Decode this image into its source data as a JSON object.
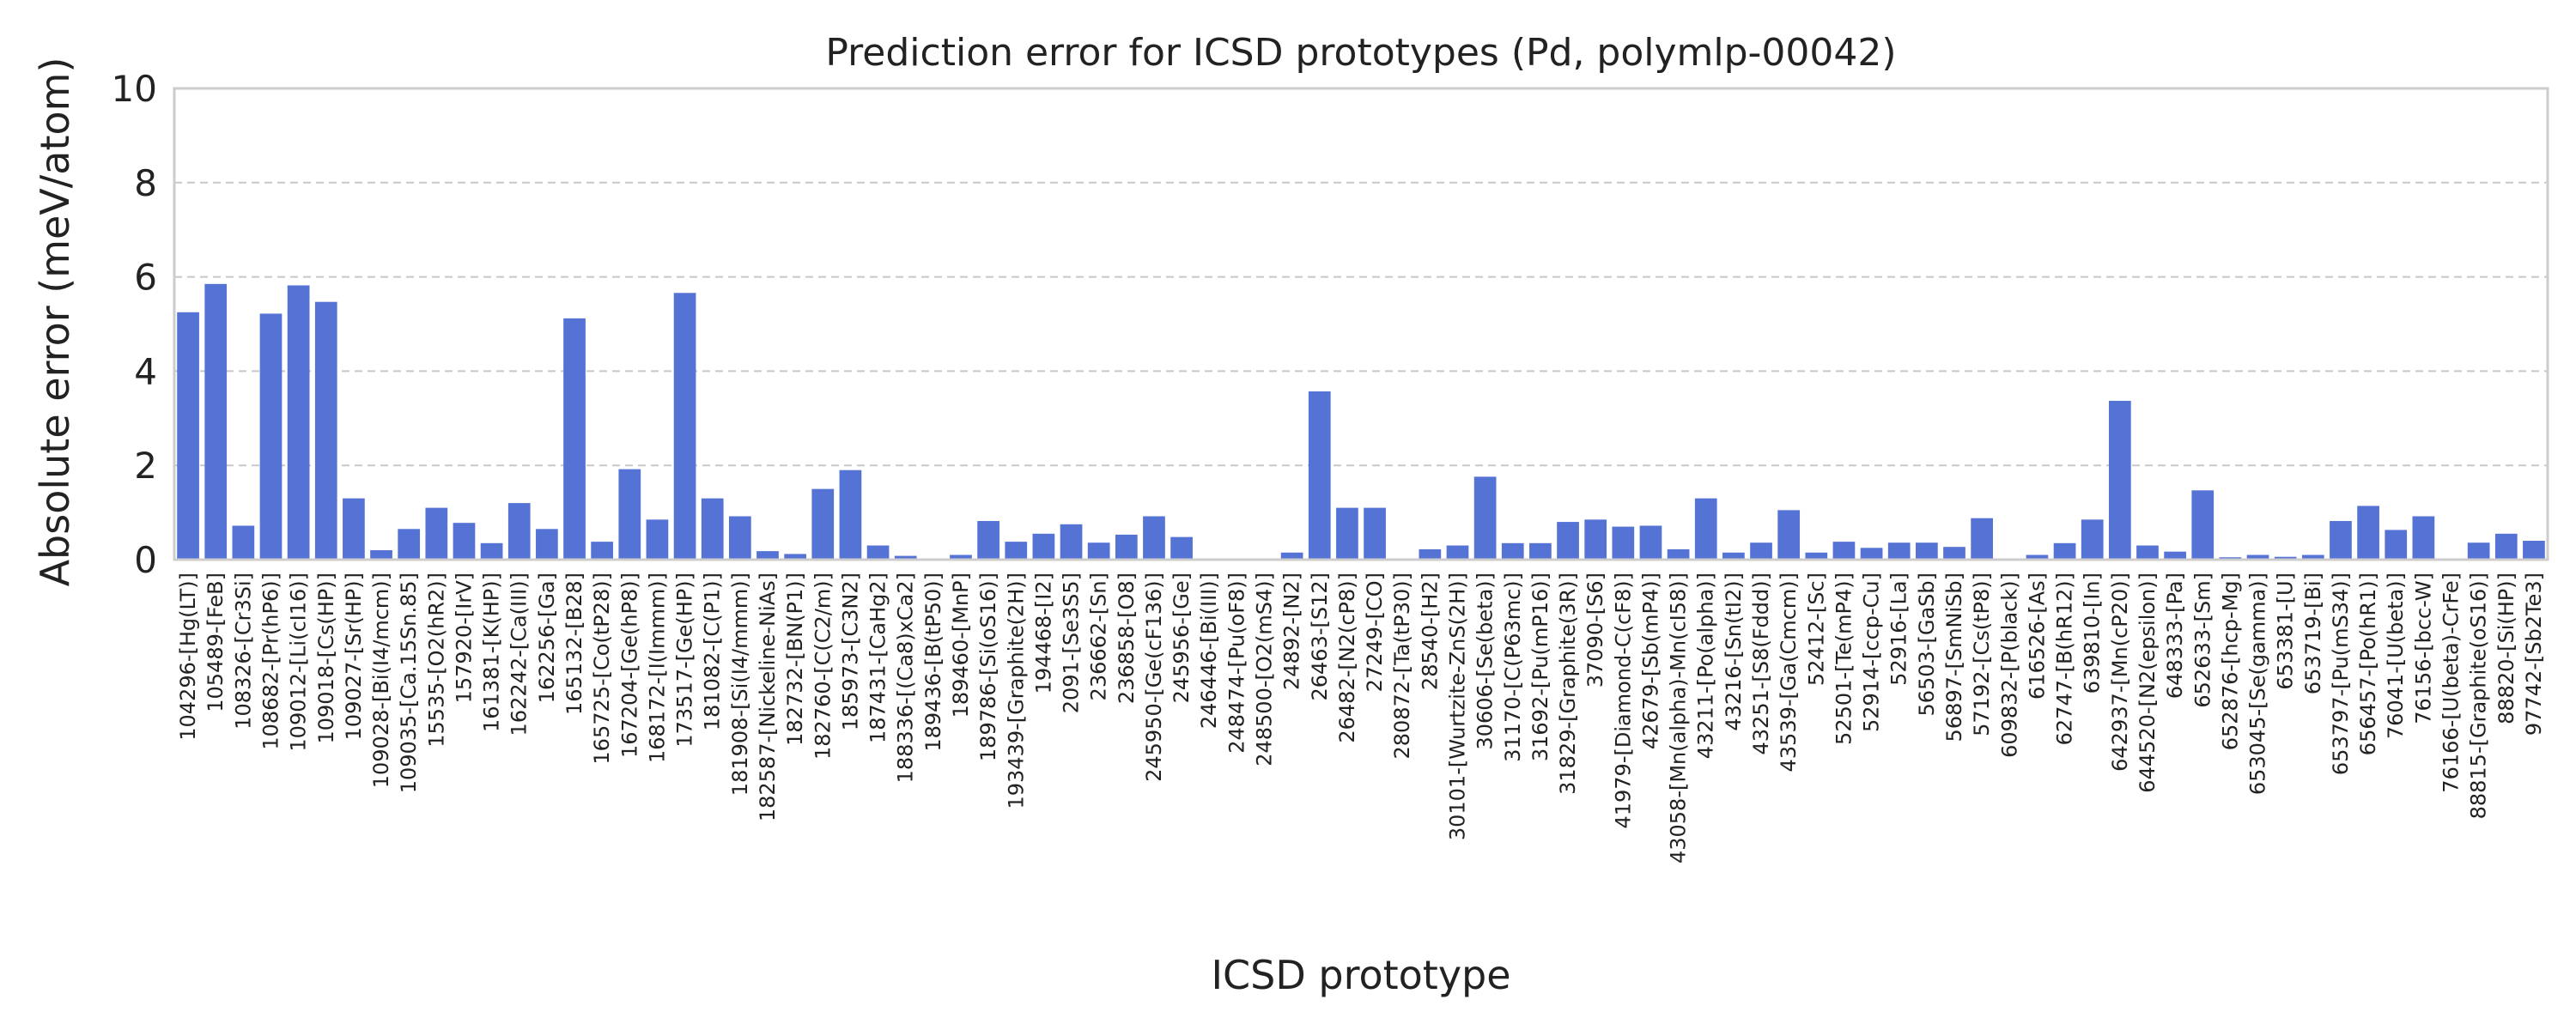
{
  "chart_data": {
    "type": "bar",
    "title": "Prediction error for ICSD prototypes (Pd, polymlp-00042)",
    "xlabel": "ICSD prototype",
    "ylabel": "Absolute error (meV/atom)",
    "ylim": [
      0,
      10
    ],
    "yticks": [
      "0",
      "2",
      "4",
      "6",
      "8",
      "10"
    ],
    "grid": "horizontal dashed",
    "legend": "none",
    "colors": {
      "bar": "#5572D5",
      "grid": "#c8c8c8",
      "axes": "#cccccc",
      "text": "#222222"
    },
    "categories": [
      "104296-[Hg(LT)]",
      "105489-[FeB]",
      "108326-[Cr3Si]",
      "108682-[Pr(hP6)]",
      "109012-[Li(cI16)]",
      "109018-[Cs(HP)]",
      "109027-[Sr(HP)]",
      "109028-[Bi(I4/mcm)]",
      "109035-[Ca.15Sn.85]",
      "15535-[O2(hR2)]",
      "157920-[IrV]",
      "161381-[K(HP)]",
      "162242-[Ca(III)]",
      "162256-[Ga]",
      "165132-[B28]",
      "165725-[Co(tP28)]",
      "167204-[Ge(hP8)]",
      "168172-[I(Immm)]",
      "173517-[Ge(HP)]",
      "181082-[C(P1)]",
      "181908-[Si(I4/mmm)]",
      "182587-[Nickeline-NiAs]",
      "182732-[BN(P1)]",
      "182760-[C(C2/m)]",
      "185973-[C3N2]",
      "187431-[CaHg2]",
      "188336-[(Ca8)xCa2]",
      "189436-[B(tP50)]",
      "189460-[MnP]",
      "189786-[Si(oS16)]",
      "193439-[Graphite(2H)]",
      "194468-[I2]",
      "2091-[Se3S5]",
      "236662-[Sn]",
      "236858-[O8]",
      "245950-[Ge(cF136)]",
      "245956-[Ge]",
      "246446-[Bi(III)]",
      "248474-[Pu(oF8)]",
      "248500-[O2(mS4)]",
      "24892-[N2]",
      "26463-[S12]",
      "26482-[N2(cP8)]",
      "27249-[CO]",
      "280872-[Ta(tP30)]",
      "28540-[H2]",
      "30101-[Wurtzite-ZnS(2H)]",
      "30606-[Se(beta)]",
      "31170-[C(P63mc)]",
      "31692-[Pu(mP16)]",
      "31829-[Graphite(3R)]",
      "37090-[S6]",
      "41979-[Diamond-C(cF8)]",
      "42679-[Sb(mP4)]",
      "43058-[Mn(alpha)-Mn(cI58)]",
      "43211-[Po(alpha)]",
      "43216-[Sn(tI2)]",
      "43251-[S8(Fddd)]",
      "43539-[Ga(Cmcm)]",
      "52412-[Sc]",
      "52501-[Te(mP4)]",
      "52914-[ccp-Cu]",
      "52916-[La]",
      "56503-[GaSb]",
      "56897-[SmNiSb]",
      "57192-[Cs(tP8)]",
      "609832-[P(black)]",
      "616526-[As]",
      "62747-[B(hR12)]",
      "639810-[In]",
      "642937-[Mn(cP20)]",
      "644520-[N2(epsilon)]",
      "648333-[Pa]",
      "652633-[Sm]",
      "652876-[hcp-Mg]",
      "653045-[Se(gamma)]",
      "653381-[U]",
      "653719-[Bi]",
      "653797-[Pu(mS34)]",
      "656457-[Po(hR1)]",
      "76041-[U(beta)]",
      "76156-[bcc-W]",
      "76166-[U(beta)-CrFe]",
      "88815-[Graphite(oS16)]",
      "88820-[Si(HP)]",
      "97742-[Sb2Te3]"
    ],
    "values": [
      5.25,
      5.85,
      0.72,
      5.22,
      5.82,
      5.47,
      1.3,
      0.2,
      0.65,
      1.1,
      0.78,
      0.35,
      1.2,
      0.65,
      5.12,
      0.38,
      1.92,
      0.85,
      5.66,
      1.3,
      0.92,
      0.18,
      0.12,
      1.5,
      1.9,
      0.3,
      0.08,
      0.02,
      0.1,
      0.82,
      0.38,
      0.55,
      0.75,
      0.36,
      0.53,
      0.92,
      0.48,
      0.01,
      0.01,
      0.01,
      0.15,
      3.57,
      1.1,
      1.1,
      0.01,
      0.22,
      0.3,
      1.76,
      0.35,
      0.35,
      0.8,
      0.85,
      0.7,
      0.72,
      0.22,
      1.3,
      0.15,
      0.36,
      1.05,
      0.15,
      0.38,
      0.25,
      0.36,
      0.36,
      0.27,
      0.88,
      0.02,
      0.1,
      0.35,
      0.85,
      3.37,
      0.3,
      0.17,
      1.47,
      0.05,
      0.1,
      0.06,
      0.1,
      0.82,
      1.14,
      0.63,
      0.92,
      0.02,
      0.36,
      0.55,
      0.4
    ]
  }
}
